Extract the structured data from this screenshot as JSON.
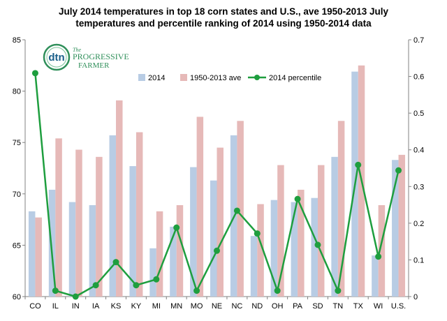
{
  "chart_data": {
    "type": "bar",
    "title_line1": "July 2014 temperatures in top 18 corn states and U.S., ave 1950-2013 July",
    "title_line2": "temperatures and percentile ranking of 2014 using 1950-2014 data",
    "categories": [
      "CO",
      "IL",
      "IN",
      "IA",
      "KS",
      "KY",
      "MI",
      "MN",
      "MO",
      "NE",
      "NC",
      "ND",
      "OH",
      "PA",
      "SD",
      "TN",
      "TX",
      "WI",
      "U.S."
    ],
    "series": [
      {
        "name": "2014",
        "type": "bar",
        "axis": "left",
        "color": "#b8cce4",
        "values": [
          68.3,
          70.4,
          69.2,
          68.9,
          75.7,
          72.7,
          64.7,
          66.8,
          72.6,
          71.3,
          75.7,
          65.9,
          69.4,
          69.2,
          69.6,
          73.6,
          81.9,
          64.0,
          73.3
        ]
      },
      {
        "name": "1950-2013 ave",
        "type": "bar",
        "axis": "left",
        "color": "#e6b9b8",
        "values": [
          67.7,
          75.4,
          74.3,
          73.6,
          79.1,
          76.0,
          68.3,
          68.9,
          77.5,
          74.5,
          77.1,
          69.0,
          72.8,
          70.4,
          72.8,
          77.1,
          82.5,
          68.9,
          73.8
        ]
      },
      {
        "name": "2014 percentile",
        "type": "line",
        "axis": "right",
        "color": "#1e9e3e",
        "values": [
          0.609,
          0.016,
          0.0,
          0.031,
          0.094,
          0.031,
          0.047,
          0.188,
          0.016,
          0.125,
          0.234,
          0.172,
          0.016,
          0.266,
          0.141,
          0.016,
          0.359,
          0.109,
          0.344
        ]
      }
    ],
    "y_left": {
      "min": 60,
      "max": 85,
      "ticks": [
        "60",
        "65",
        "70",
        "75",
        "80",
        "85"
      ]
    },
    "y_right": {
      "min": 0,
      "max": 0.7,
      "ticks": [
        "0",
        "0.1",
        "0.2",
        "0.3",
        "0.4",
        "0.5",
        "0.6",
        "0.7"
      ]
    },
    "grid": false,
    "legend_position": "top"
  },
  "logo": {
    "badge": "dtn",
    "line1": "The",
    "line2": "PROGRESSIVE",
    "line3": "FARMER"
  },
  "colors": {
    "bar_2014": "#b8cce4",
    "bar_ave": "#e6b9b8",
    "line": "#1e9e3e",
    "axis": "#808080"
  }
}
